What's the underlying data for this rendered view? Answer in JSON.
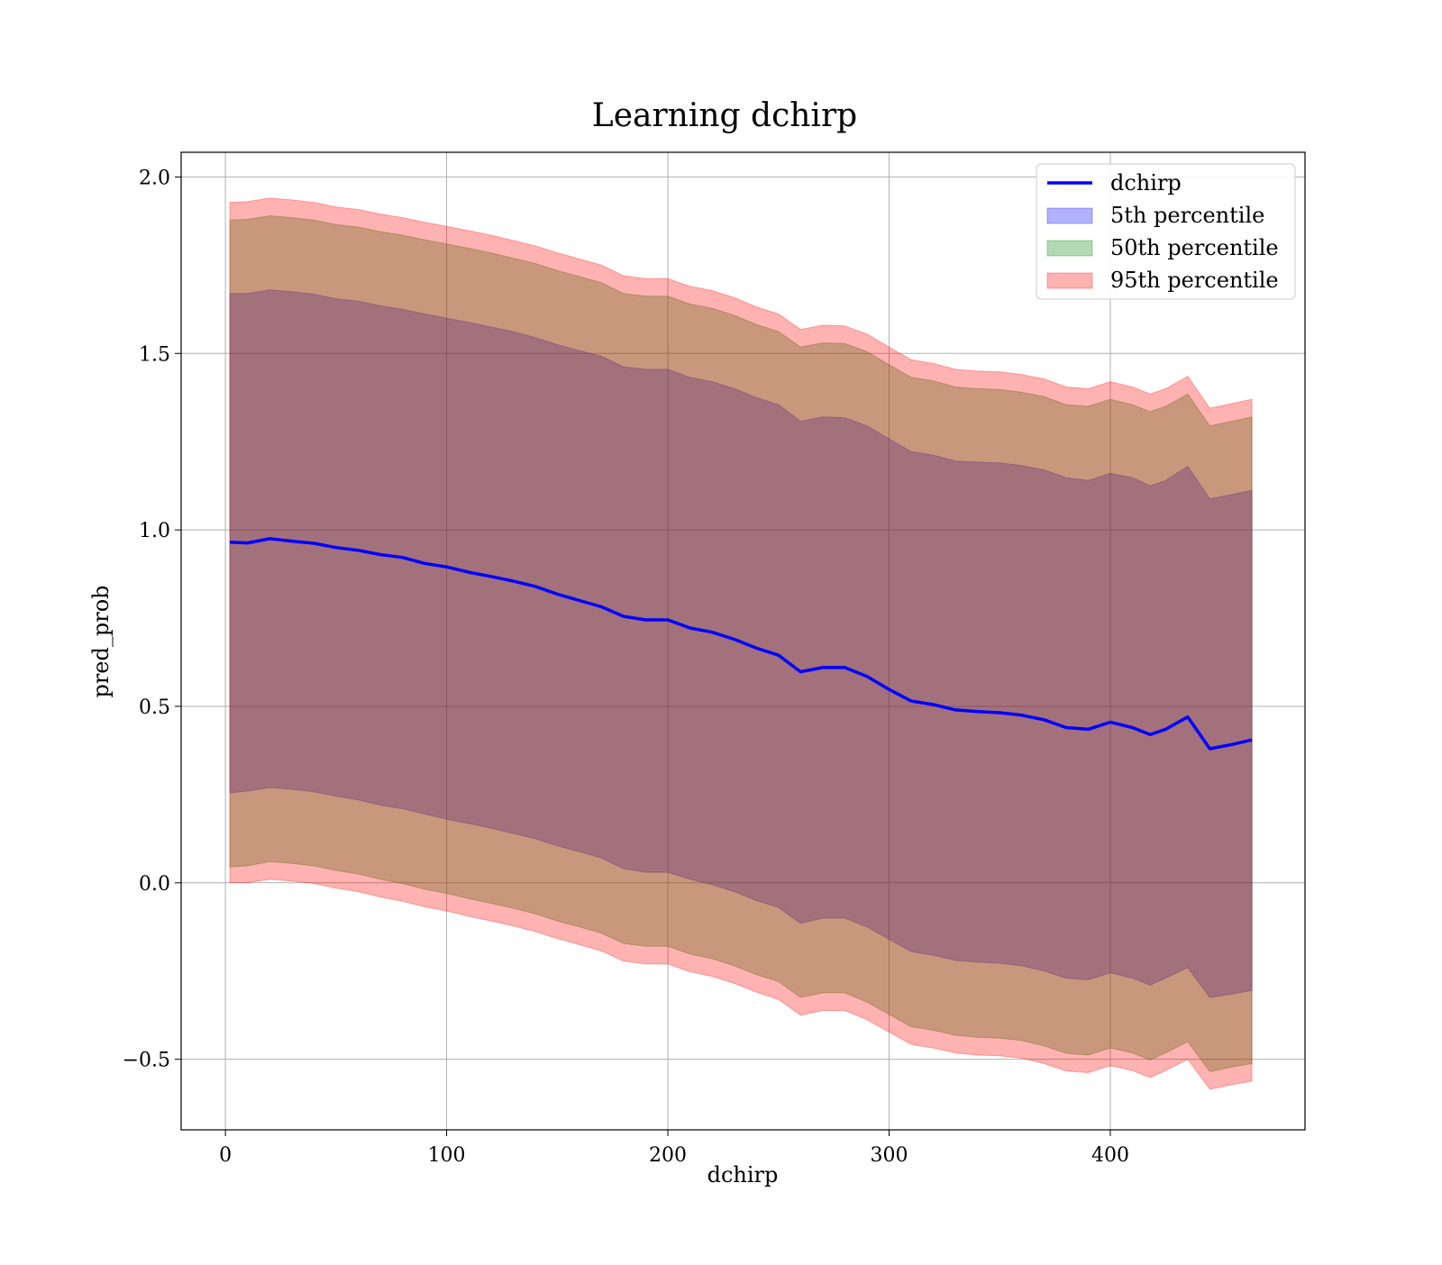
{
  "chart_data": {
    "type": "area",
    "title": "Learning dchirp",
    "xlabel": "dchirp",
    "ylabel": "pred_prob",
    "xlim": [
      -20,
      488
    ],
    "ylim": [
      -0.7,
      2.07
    ],
    "xticks": [
      0,
      100,
      200,
      300,
      400
    ],
    "xtick_labels": [
      "0",
      "100",
      "200",
      "300",
      "400"
    ],
    "yticks": [
      -0.5,
      0.0,
      0.5,
      1.0,
      1.5,
      2.0
    ],
    "ytick_labels": [
      "−0.5",
      "0.0",
      "0.5",
      "1.0",
      "1.5",
      "2.0"
    ],
    "grid": true,
    "legend_position": "top-right",
    "x": [
      2,
      10,
      20,
      30,
      40,
      50,
      60,
      70,
      80,
      90,
      100,
      110,
      120,
      130,
      140,
      150,
      160,
      170,
      180,
      190,
      200,
      210,
      220,
      230,
      240,
      250,
      260,
      270,
      280,
      290,
      300,
      310,
      320,
      330,
      340,
      350,
      360,
      370,
      380,
      390,
      400,
      410,
      418,
      425,
      435,
      445,
      455,
      464
    ],
    "series": [
      {
        "name": "dchirp",
        "kind": "line",
        "color": "#0000ff",
        "values": [
          0.965,
          0.963,
          0.975,
          0.968,
          0.962,
          0.95,
          0.942,
          0.93,
          0.922,
          0.905,
          0.895,
          0.88,
          0.868,
          0.855,
          0.84,
          0.818,
          0.8,
          0.782,
          0.755,
          0.745,
          0.745,
          0.722,
          0.71,
          0.69,
          0.665,
          0.645,
          0.598,
          0.61,
          0.61,
          0.585,
          0.548,
          0.515,
          0.505,
          0.49,
          0.485,
          0.482,
          0.475,
          0.462,
          0.44,
          0.435,
          0.455,
          0.44,
          0.42,
          0.435,
          0.47,
          0.38,
          0.392,
          0.405
        ]
      },
      {
        "name": "5th percentile",
        "kind": "band",
        "color": "#0000ff",
        "opacity": 0.3,
        "lower": [
          0.255,
          0.26,
          0.27,
          0.265,
          0.258,
          0.245,
          0.235,
          0.22,
          0.21,
          0.195,
          0.18,
          0.168,
          0.155,
          0.14,
          0.125,
          0.105,
          0.088,
          0.07,
          0.04,
          0.03,
          0.03,
          0.01,
          -0.005,
          -0.025,
          -0.05,
          -0.07,
          -0.115,
          -0.1,
          -0.1,
          -0.125,
          -0.16,
          -0.195,
          -0.205,
          -0.22,
          -0.225,
          -0.228,
          -0.235,
          -0.25,
          -0.27,
          -0.275,
          -0.255,
          -0.27,
          -0.29,
          -0.27,
          -0.24,
          -0.325,
          -0.315,
          -0.305
        ],
        "upper": [
          1.67,
          1.67,
          1.68,
          1.675,
          1.668,
          1.655,
          1.648,
          1.635,
          1.625,
          1.612,
          1.6,
          1.588,
          1.575,
          1.562,
          1.545,
          1.525,
          1.508,
          1.492,
          1.462,
          1.455,
          1.455,
          1.432,
          1.42,
          1.4,
          1.375,
          1.355,
          1.308,
          1.32,
          1.318,
          1.295,
          1.258,
          1.222,
          1.212,
          1.195,
          1.192,
          1.19,
          1.182,
          1.17,
          1.148,
          1.14,
          1.16,
          1.148,
          1.125,
          1.14,
          1.18,
          1.088,
          1.1,
          1.112
        ]
      },
      {
        "name": "50th percentile",
        "kind": "band",
        "color": "#008000",
        "opacity": 0.3,
        "lower": [
          0.045,
          0.048,
          0.06,
          0.055,
          0.048,
          0.035,
          0.025,
          0.01,
          -0.002,
          -0.018,
          -0.03,
          -0.045,
          -0.058,
          -0.072,
          -0.088,
          -0.108,
          -0.125,
          -0.143,
          -0.172,
          -0.18,
          -0.18,
          -0.202,
          -0.215,
          -0.235,
          -0.26,
          -0.28,
          -0.325,
          -0.312,
          -0.312,
          -0.338,
          -0.373,
          -0.408,
          -0.418,
          -0.432,
          -0.438,
          -0.44,
          -0.447,
          -0.462,
          -0.483,
          -0.488,
          -0.468,
          -0.482,
          -0.502,
          -0.482,
          -0.45,
          -0.535,
          -0.522,
          -0.512
        ],
        "upper": [
          1.878,
          1.88,
          1.89,
          1.885,
          1.878,
          1.865,
          1.858,
          1.845,
          1.835,
          1.822,
          1.81,
          1.798,
          1.785,
          1.77,
          1.755,
          1.735,
          1.718,
          1.7,
          1.67,
          1.662,
          1.662,
          1.64,
          1.628,
          1.608,
          1.582,
          1.562,
          1.518,
          1.53,
          1.528,
          1.505,
          1.468,
          1.432,
          1.422,
          1.405,
          1.4,
          1.398,
          1.39,
          1.378,
          1.355,
          1.35,
          1.37,
          1.355,
          1.335,
          1.35,
          1.385,
          1.295,
          1.308,
          1.32
        ]
      },
      {
        "name": "95th percentile",
        "kind": "band",
        "color": "#ff0000",
        "opacity": 0.3,
        "lower": [
          0.0,
          0.0,
          0.01,
          0.005,
          -0.002,
          -0.015,
          -0.025,
          -0.04,
          -0.052,
          -0.068,
          -0.08,
          -0.095,
          -0.108,
          -0.122,
          -0.138,
          -0.158,
          -0.175,
          -0.193,
          -0.222,
          -0.23,
          -0.23,
          -0.252,
          -0.265,
          -0.285,
          -0.31,
          -0.33,
          -0.375,
          -0.362,
          -0.362,
          -0.388,
          -0.423,
          -0.458,
          -0.468,
          -0.482,
          -0.488,
          -0.49,
          -0.497,
          -0.512,
          -0.533,
          -0.538,
          -0.518,
          -0.532,
          -0.552,
          -0.532,
          -0.5,
          -0.585,
          -0.572,
          -0.562
        ],
        "upper": [
          1.928,
          1.93,
          1.94,
          1.935,
          1.928,
          1.915,
          1.908,
          1.895,
          1.885,
          1.872,
          1.86,
          1.848,
          1.835,
          1.82,
          1.805,
          1.785,
          1.768,
          1.75,
          1.72,
          1.712,
          1.712,
          1.69,
          1.678,
          1.658,
          1.632,
          1.612,
          1.568,
          1.58,
          1.578,
          1.555,
          1.518,
          1.482,
          1.472,
          1.455,
          1.45,
          1.448,
          1.44,
          1.428,
          1.405,
          1.4,
          1.42,
          1.405,
          1.385,
          1.4,
          1.435,
          1.345,
          1.358,
          1.37
        ]
      }
    ]
  }
}
